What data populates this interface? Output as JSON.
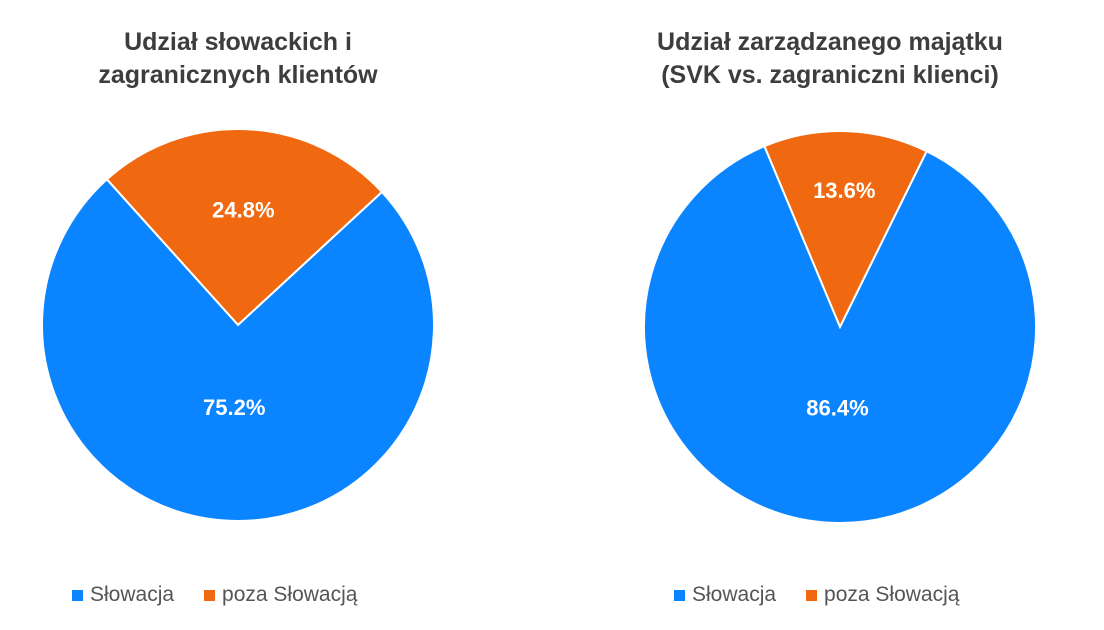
{
  "chart_data": [
    {
      "type": "pie",
      "title": [
        "Udział słowackich i",
        "zagranicznych klientów"
      ],
      "categories": [
        "Słowacja",
        "poza Słowacją"
      ],
      "values": [
        75.2,
        24.8
      ],
      "labels": [
        "75.2%",
        "24.8%"
      ],
      "colors": [
        "#0a84ff",
        "#f0680f"
      ],
      "legend": "bottom"
    },
    {
      "type": "pie",
      "title": [
        "Udział zarządzanego majątku",
        "(SVK vs. zagraniczni klienci)"
      ],
      "categories": [
        "Słowacja",
        "poza Słowacją"
      ],
      "values": [
        86.4,
        13.6
      ],
      "labels": [
        "86.4%",
        "13.6%"
      ],
      "colors": [
        "#0a84ff",
        "#f0680f"
      ],
      "legend": "bottom"
    }
  ]
}
